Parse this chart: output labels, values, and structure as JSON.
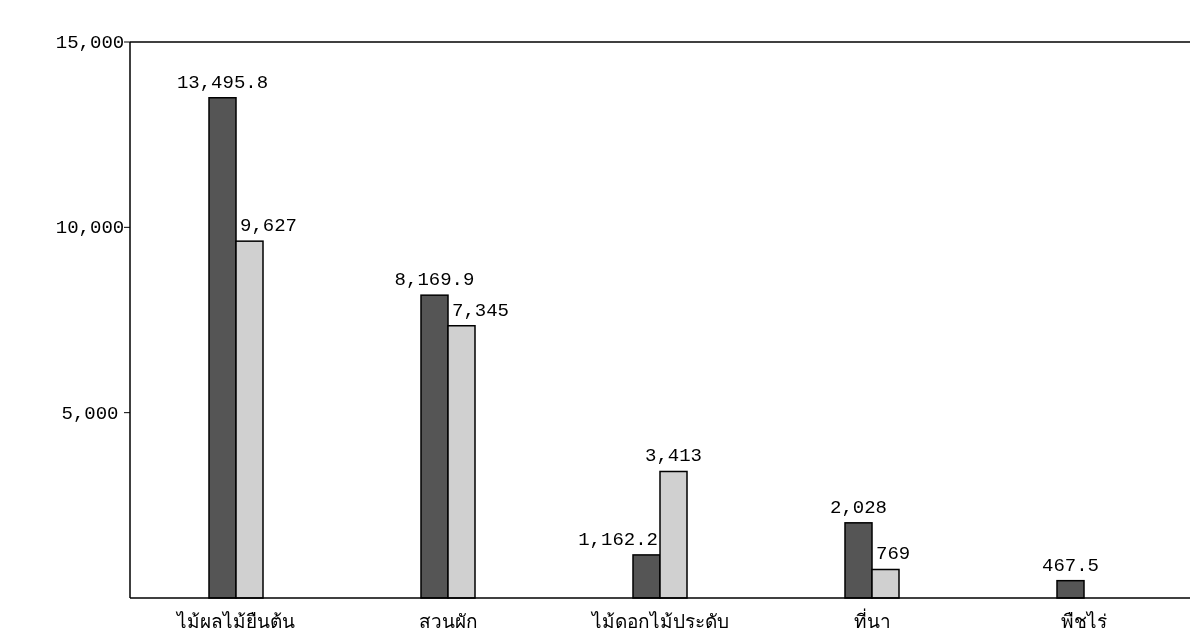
{
  "chart_data": {
    "type": "bar",
    "categories": [
      "ไม้ผลไม้ยืนต้น",
      "สวนผัก",
      "ไม้ดอกไม้ประดับ",
      "ที่นา",
      "พืชไร่"
    ],
    "series": [
      {
        "color": "#555555",
        "values": [
          13495.8,
          8169.9,
          1162.2,
          2028,
          467.5
        ],
        "value_labels": [
          "13,495.8",
          "8,169.9",
          "1,162.2",
          "2,028",
          "467.5"
        ]
      },
      {
        "color": "#d0d0d0",
        "values": [
          9627,
          7345,
          3413,
          769,
          null
        ],
        "value_labels": [
          "9,627",
          "7,345",
          "3,413",
          "769",
          null
        ]
      }
    ],
    "ylim": [
      0,
      15000
    ],
    "yticks": [
      {
        "value": 5000,
        "label": "5,000"
      },
      {
        "value": 10000,
        "label": "10,000"
      },
      {
        "value": 15000,
        "label": "15,000"
      }
    ],
    "grid": false
  }
}
